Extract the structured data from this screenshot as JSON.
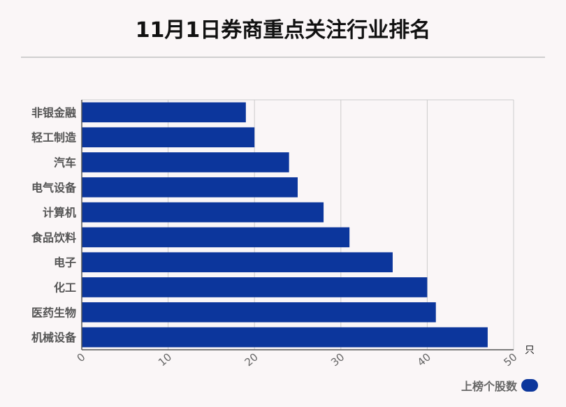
{
  "title": "11月1日券商重点关注行业排名",
  "colors": {
    "bar": "#0c369c",
    "grid": "#cccccc",
    "axis": "#555555",
    "tick_label": "#666666",
    "category_label": "#555555"
  },
  "chart_data": {
    "type": "bar",
    "orientation": "horizontal",
    "title": "11月1日券商重点关注行业排名",
    "categories": [
      "非银金融",
      "轻工制造",
      "汽车",
      "电气设备",
      "计算机",
      "食品饮料",
      "电子",
      "化工",
      "医药生物",
      "机械设备"
    ],
    "series": [
      {
        "name": "上榜个股数",
        "values": [
          19,
          20,
          24,
          25,
          28,
          31,
          36,
          40,
          41,
          47
        ]
      }
    ],
    "xlim": [
      0,
      50
    ],
    "xticks": [
      "0",
      "10",
      "20",
      "30",
      "40",
      "50"
    ],
    "xunit": "只",
    "grid": true,
    "legend_position": "bottom-right"
  }
}
